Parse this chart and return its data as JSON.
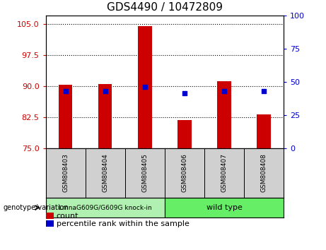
{
  "title": "GDS4490 / 10472809",
  "samples": [
    "GSM808403",
    "GSM808404",
    "GSM808405",
    "GSM808406",
    "GSM808407",
    "GSM808408"
  ],
  "count_values": [
    90.3,
    90.5,
    104.5,
    81.8,
    91.2,
    83.2
  ],
  "percentile_values": [
    88.8,
    88.8,
    89.8,
    88.3,
    88.8,
    88.8
  ],
  "bar_bottom": 75,
  "ylim_left": [
    75,
    107
  ],
  "ylim_right": [
    0,
    100
  ],
  "yticks_left": [
    75,
    82.5,
    90,
    97.5,
    105
  ],
  "yticks_right": [
    0,
    25,
    50,
    75,
    100
  ],
  "bar_color": "#cc0000",
  "dot_color": "#0000cc",
  "bar_width": 0.35,
  "genotype_labels": [
    "LmnaG609G/G609G knock-in",
    "wild type"
  ],
  "group1_indices": [
    0,
    1,
    2
  ],
  "group2_indices": [
    3,
    4,
    5
  ],
  "group1_bg": "#d0d0d0",
  "group2_bg": "#90ee90",
  "legend_count": "count",
  "legend_percentile": "percentile rank within the sample",
  "title_color": "#000000",
  "left_tick_color": "#cc0000",
  "right_tick_color": "#0000cc",
  "figsize": [
    4.61,
    3.54
  ],
  "dpi": 100
}
